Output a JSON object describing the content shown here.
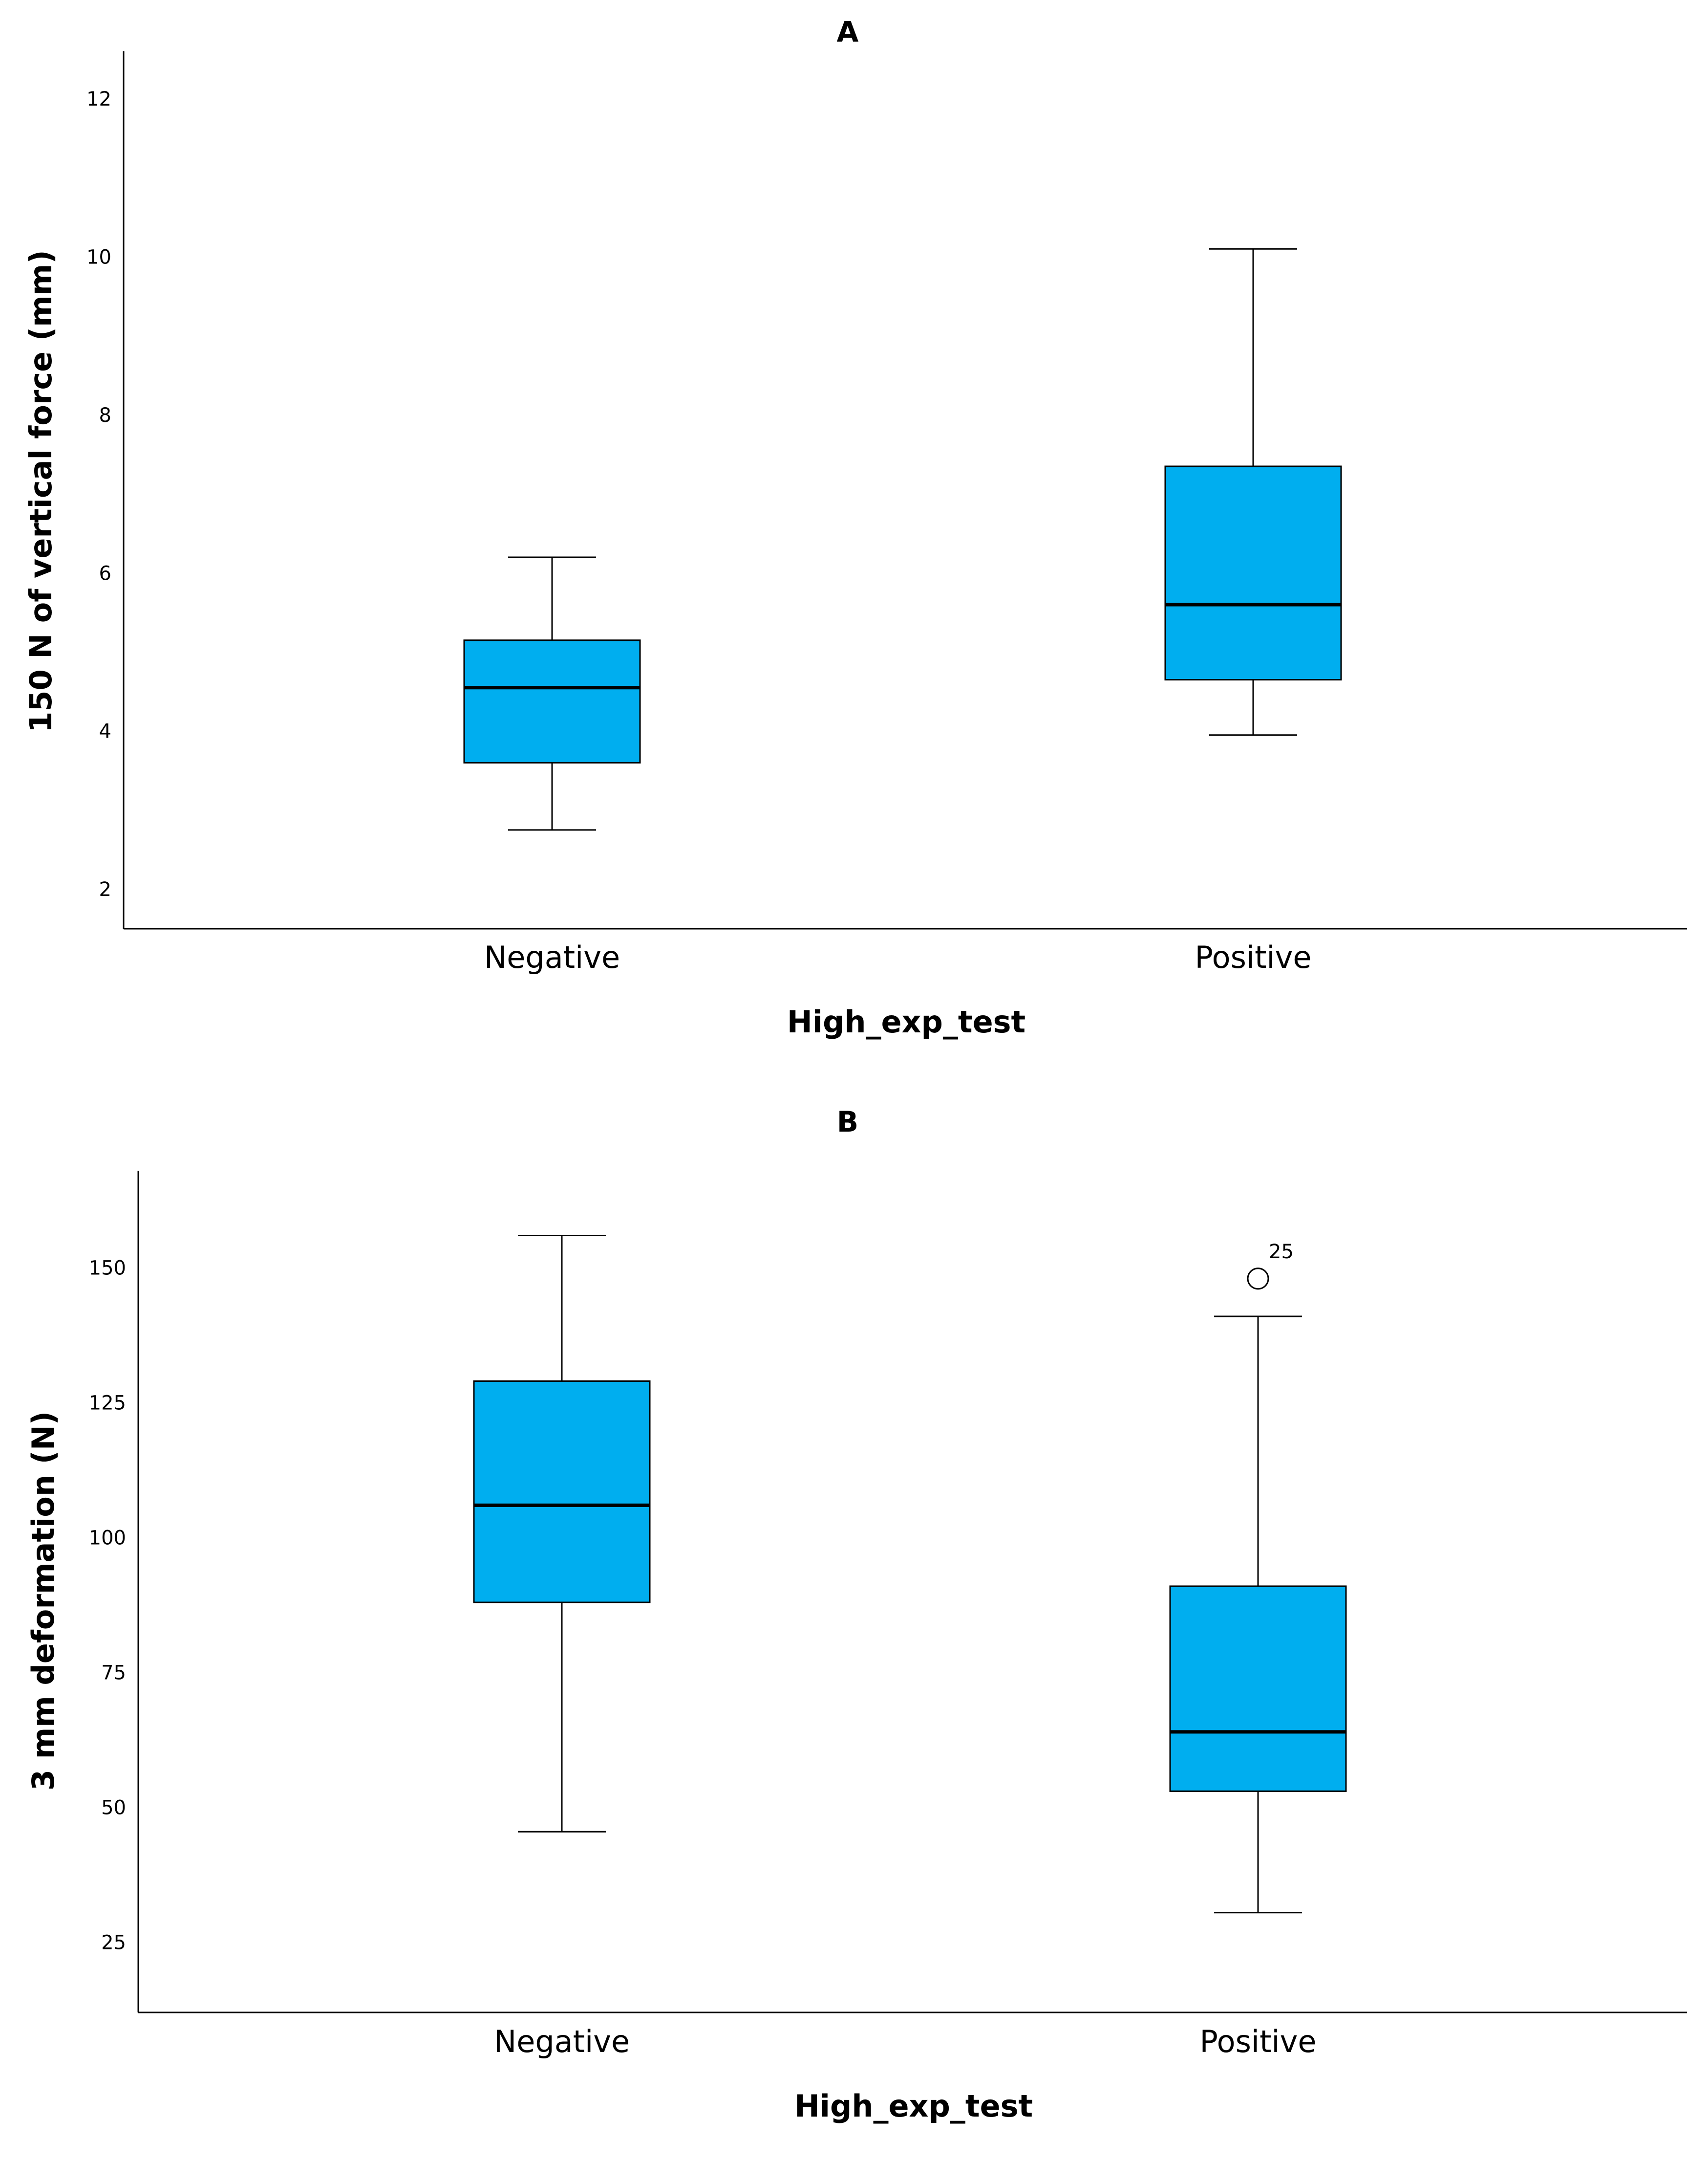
{
  "chart_data": [
    {
      "type": "box",
      "title": "A",
      "xlabel": "High_exp_test",
      "ylabel": "150 N of vertical force (mm)",
      "ylim": [
        1.5,
        12.6
      ],
      "yticks": [
        2,
        4,
        6,
        8,
        10,
        12
      ],
      "categories": [
        "Negative",
        "Positive"
      ],
      "box_color": "#00AEEF",
      "boxes": [
        {
          "category": "Negative",
          "min": 2.75,
          "q1": 3.6,
          "median": 4.55,
          "q3": 5.15,
          "max": 6.2,
          "outliers": []
        },
        {
          "category": "Positive",
          "min": 3.95,
          "q1": 4.65,
          "median": 5.6,
          "q3": 7.35,
          "max": 10.1,
          "outliers": []
        }
      ]
    },
    {
      "type": "box",
      "title": "B",
      "xlabel": "High_exp_test",
      "ylabel": "3 mm deformation (N)",
      "ylim": [
        12,
        168
      ],
      "yticks": [
        25,
        50,
        75,
        100,
        125,
        150
      ],
      "categories": [
        "Negative",
        "Positive"
      ],
      "box_color": "#00AEEF",
      "boxes": [
        {
          "category": "Negative",
          "min": 45.5,
          "q1": 88,
          "median": 106,
          "q3": 129,
          "max": 156,
          "outliers": []
        },
        {
          "category": "Positive",
          "min": 30.5,
          "q1": 53,
          "median": 64,
          "q3": 91,
          "max": 141,
          "outliers": [
            {
              "value": 148,
              "label": "25"
            }
          ]
        }
      ]
    }
  ]
}
